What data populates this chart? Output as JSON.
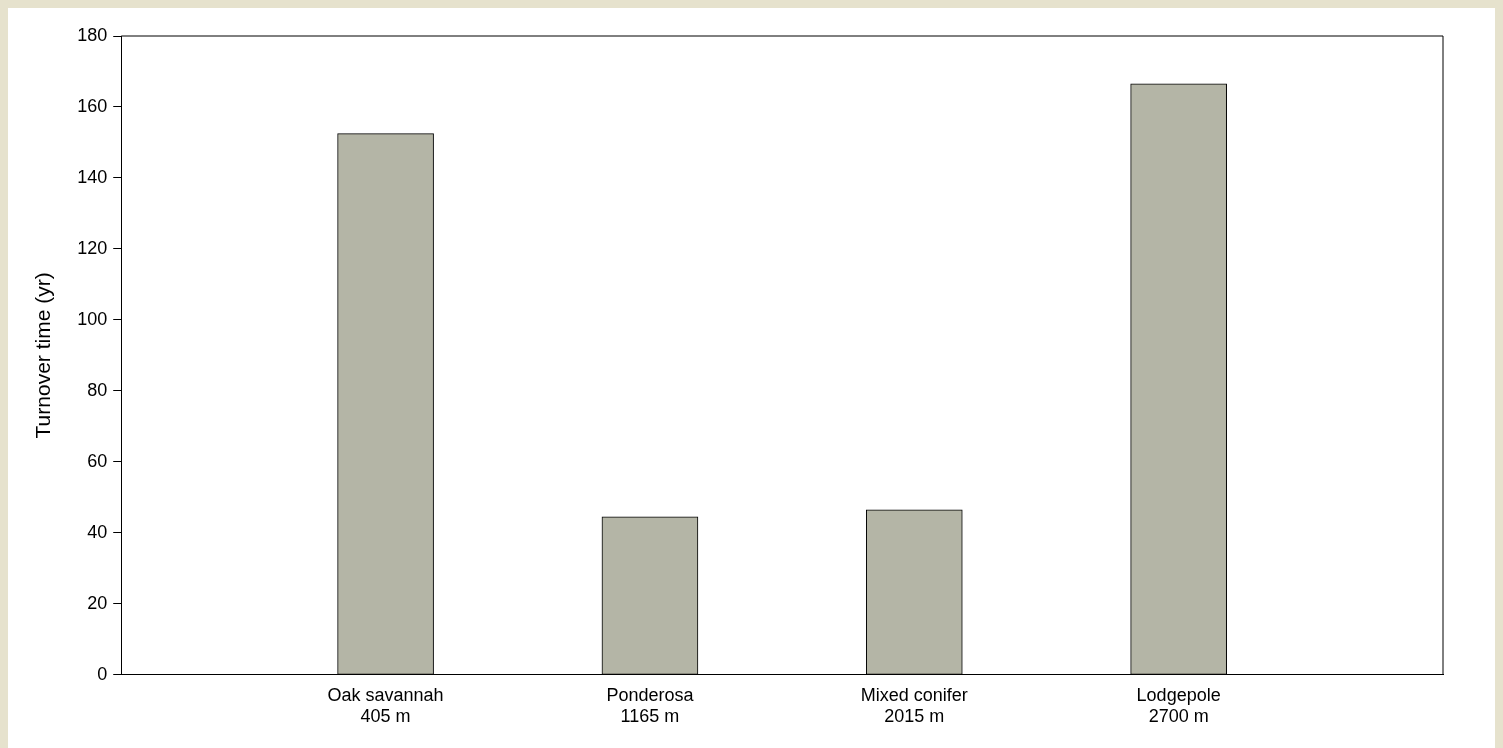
{
  "chart_data": {
    "type": "bar",
    "ylabel": "Turnover time (yr)",
    "categories": [
      "Oak savannah\n405 m",
      "Ponderosa\n1165 m",
      "Mixed conifer\n2015 m",
      "Lodgepole\n2700 m"
    ],
    "values": [
      152.5,
      44.5,
      46.5,
      166.5
    ],
    "color": "#b4b5a6",
    "ylim": [
      0,
      180
    ],
    "yticks": [
      0,
      20,
      40,
      60,
      80,
      100,
      120,
      140,
      160,
      180
    ],
    "grid": false,
    "legend": false
  }
}
